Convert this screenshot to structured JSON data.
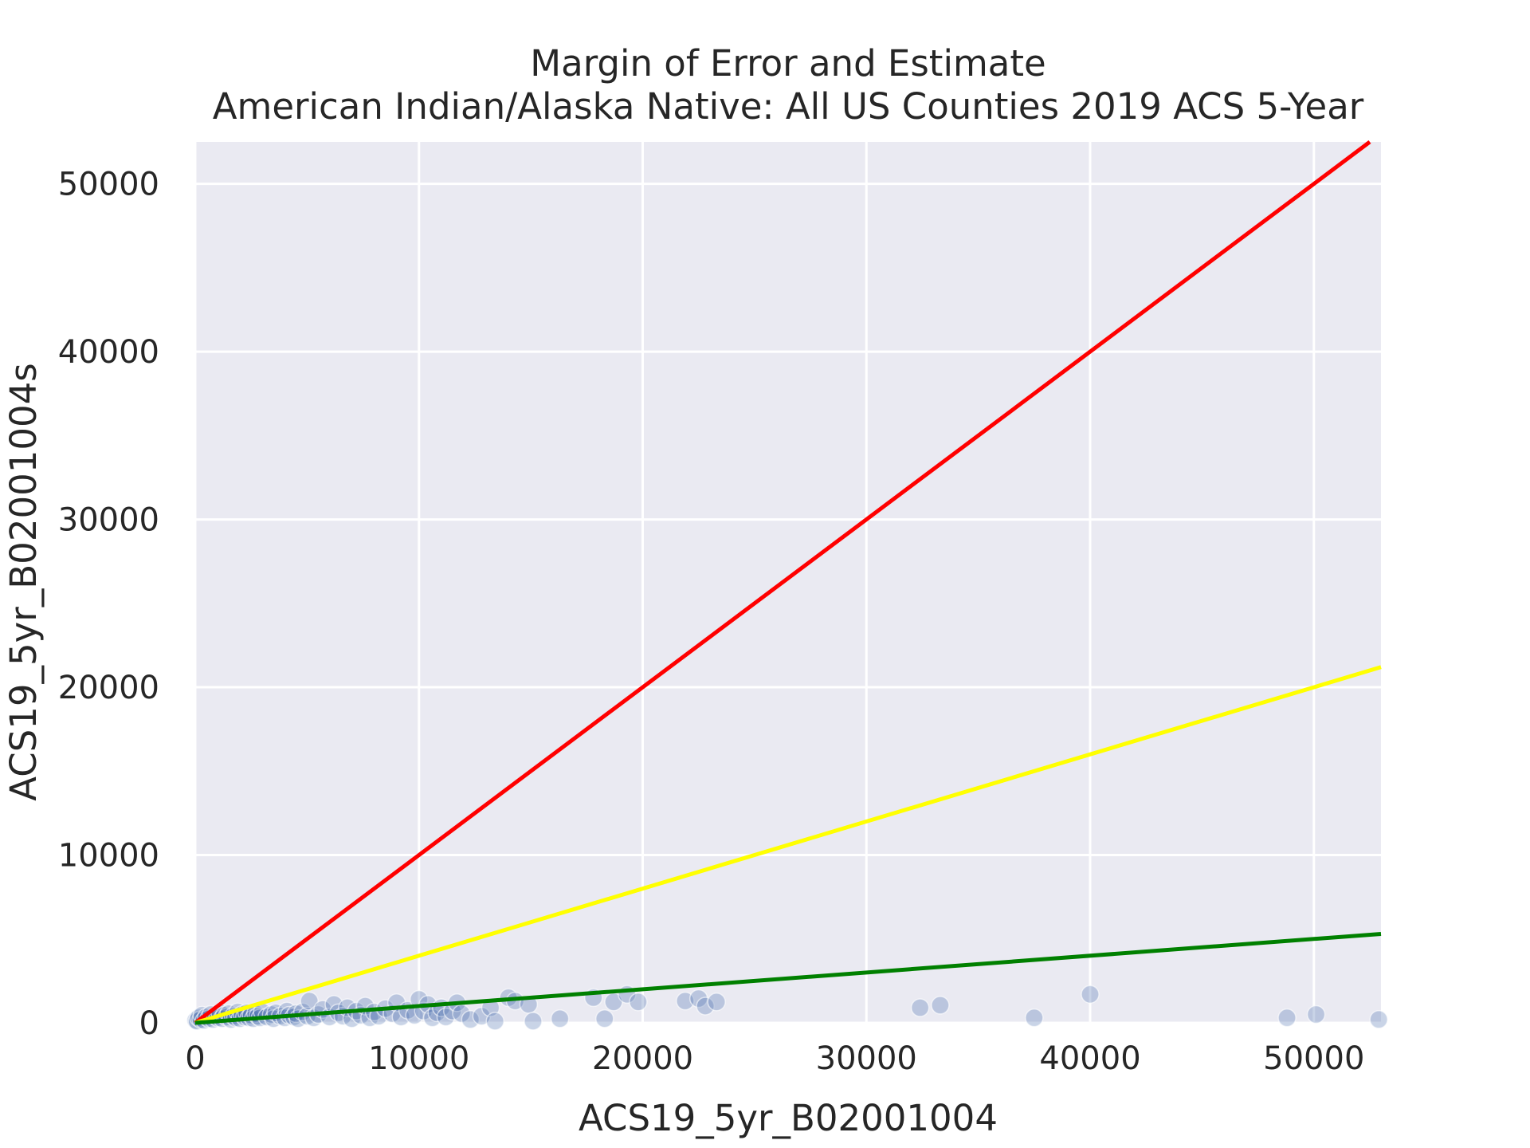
{
  "chart_data": {
    "type": "scatter",
    "title": "Margin of Error and Estimate",
    "subtitle": "American Indian/Alaska Native: All US Counties 2019 ACS 5-Year",
    "xlabel": "ACS19_5yr_B02001004",
    "ylabel": "ACS19_5yr_B02001004s",
    "xlim": [
      0,
      53000
    ],
    "ylim": [
      0,
      52500
    ],
    "xticks": [
      0,
      10000,
      20000,
      30000,
      40000,
      50000
    ],
    "yticks": [
      0,
      10000,
      20000,
      30000,
      40000,
      50000
    ],
    "grid": true,
    "background": "#eaeaf2",
    "grid_color": "#ffffff",
    "point_color": "#4c72b0",
    "point_opacity": 0.3,
    "reference_lines": [
      {
        "name": "slope 1.0",
        "slope": 1.0,
        "color": "#ff0000"
      },
      {
        "name": "slope 0.4",
        "slope": 0.4,
        "color": "#ffff00"
      },
      {
        "name": "slope 0.1",
        "slope": 0.1,
        "color": "#008000"
      }
    ],
    "points": [
      [
        20,
        150
      ],
      [
        80,
        100
      ],
      [
        150,
        300
      ],
      [
        250,
        200
      ],
      [
        300,
        450
      ],
      [
        400,
        150
      ],
      [
        500,
        350
      ],
      [
        600,
        250
      ],
      [
        700,
        500
      ],
      [
        800,
        200
      ],
      [
        900,
        400
      ],
      [
        1000,
        300
      ],
      [
        1100,
        600
      ],
      [
        1200,
        250
      ],
      [
        1300,
        450
      ],
      [
        1400,
        350
      ],
      [
        1500,
        550
      ],
      [
        1600,
        200
      ],
      [
        1700,
        400
      ],
      [
        1800,
        300
      ],
      [
        1900,
        650
      ],
      [
        2000,
        250
      ],
      [
        2100,
        500
      ],
      [
        2200,
        350
      ],
      [
        2300,
        600
      ],
      [
        2400,
        300
      ],
      [
        2500,
        450
      ],
      [
        2600,
        250
      ],
      [
        2700,
        550
      ],
      [
        2800,
        400
      ],
      [
        2900,
        300
      ],
      [
        3000,
        650
      ],
      [
        3200,
        350
      ],
      [
        3400,
        500
      ],
      [
        3500,
        250
      ],
      [
        3600,
        600
      ],
      [
        3800,
        400
      ],
      [
        4000,
        300
      ],
      [
        4100,
        700
      ],
      [
        4200,
        450
      ],
      [
        4400,
        350
      ],
      [
        4500,
        550
      ],
      [
        4600,
        250
      ],
      [
        4800,
        650
      ],
      [
        5000,
        400
      ],
      [
        5100,
        1300
      ],
      [
        5300,
        300
      ],
      [
        5500,
        500
      ],
      [
        5700,
        800
      ],
      [
        6000,
        350
      ],
      [
        6200,
        1100
      ],
      [
        6400,
        600
      ],
      [
        6600,
        400
      ],
      [
        6800,
        900
      ],
      [
        7000,
        250
      ],
      [
        7200,
        700
      ],
      [
        7400,
        450
      ],
      [
        7600,
        1000
      ],
      [
        7800,
        300
      ],
      [
        8000,
        650
      ],
      [
        8200,
        400
      ],
      [
        8500,
        850
      ],
      [
        8800,
        550
      ],
      [
        9000,
        1200
      ],
      [
        9200,
        350
      ],
      [
        9500,
        750
      ],
      [
        9800,
        450
      ],
      [
        10000,
        1400
      ],
      [
        10200,
        700
      ],
      [
        10400,
        1100
      ],
      [
        10600,
        300
      ],
      [
        10800,
        600
      ],
      [
        11000,
        900
      ],
      [
        11200,
        350
      ],
      [
        11500,
        700
      ],
      [
        11700,
        1200
      ],
      [
        11900,
        550
      ],
      [
        12300,
        200
      ],
      [
        12800,
        400
      ],
      [
        13200,
        900
      ],
      [
        13400,
        100
      ],
      [
        14000,
        1500
      ],
      [
        14300,
        1300
      ],
      [
        14900,
        1100
      ],
      [
        15100,
        100
      ],
      [
        16300,
        250
      ],
      [
        17800,
        1500
      ],
      [
        18300,
        250
      ],
      [
        18700,
        1250
      ],
      [
        19300,
        1700
      ],
      [
        19800,
        1250
      ],
      [
        21900,
        1300
      ],
      [
        22500,
        1450
      ],
      [
        22800,
        1000
      ],
      [
        23300,
        1250
      ],
      [
        32400,
        900
      ],
      [
        33300,
        1050
      ],
      [
        37500,
        300
      ],
      [
        40000,
        1700
      ],
      [
        48800,
        300
      ],
      [
        50100,
        500
      ],
      [
        52900,
        200
      ]
    ]
  }
}
